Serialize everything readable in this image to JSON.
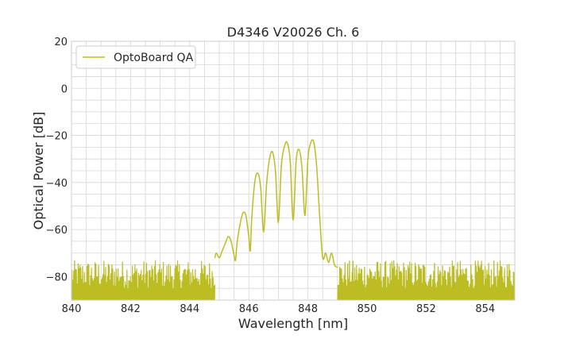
{
  "chart_data": {
    "type": "line",
    "title": "D4346 V20026 Ch. 6",
    "xlabel": "Wavelength [nm]",
    "ylabel": "Optical Power [dB]",
    "xlim": [
      840,
      855
    ],
    "ylim": [
      -90,
      20
    ],
    "xticks": [
      840,
      842,
      844,
      846,
      848,
      850,
      852,
      854
    ],
    "yticks": [
      -80,
      -60,
      -40,
      -20,
      0,
      20
    ],
    "x_minor_step": 0.5,
    "y_minor_step": 5,
    "grid": true,
    "legend_position": "top-left",
    "series": [
      {
        "name": "OptoBoard QA",
        "color": "#bcbd22",
        "noise_region": {
          "floor": -90,
          "top_min": -85,
          "top_max": -73,
          "ranges": [
            [
              840,
              844.85
            ],
            [
              849.0,
              855
            ]
          ]
        },
        "x": [
          844.85,
          844.9,
          845.0,
          845.1,
          845.2,
          845.3,
          845.4,
          845.5,
          845.55,
          845.6,
          845.7,
          845.8,
          845.9,
          846.0,
          846.05,
          846.1,
          846.2,
          846.3,
          846.4,
          846.5,
          846.6,
          846.7,
          846.8,
          846.9,
          847.0,
          847.1,
          847.2,
          847.3,
          847.4,
          847.5,
          847.6,
          847.7,
          847.8,
          847.9,
          848.0,
          848.1,
          848.2,
          848.3,
          848.4,
          848.5,
          848.6,
          848.7,
          848.8,
          848.9,
          849.0
        ],
        "y": [
          -72,
          -70,
          -72,
          -69,
          -66,
          -63,
          -65,
          -71,
          -73,
          -66,
          -58,
          -53,
          -54,
          -63,
          -69,
          -55,
          -40,
          -36,
          -42,
          -61,
          -41,
          -30,
          -27,
          -35,
          -57,
          -33,
          -25,
          -23,
          -31,
          -56,
          -31,
          -26,
          -34,
          -54,
          -30,
          -23,
          -23,
          -34,
          -55,
          -72,
          -70,
          -74,
          -70,
          -75,
          -76
        ]
      }
    ]
  }
}
